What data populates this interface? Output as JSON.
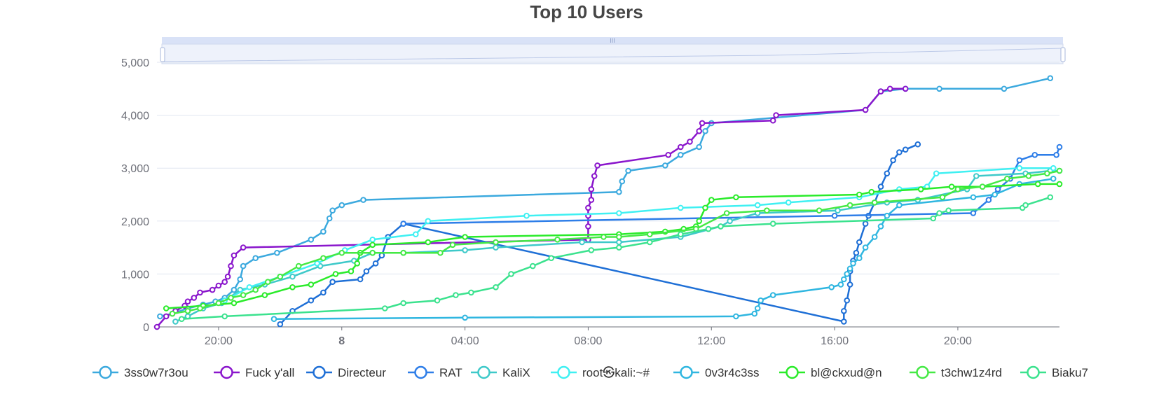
{
  "chart_data": {
    "type": "line",
    "title": "Top 10 Users",
    "xlabel": "",
    "ylabel": "",
    "ylim": [
      0,
      5000
    ],
    "yticks": [
      0,
      1000,
      2000,
      3000,
      4000,
      5000
    ],
    "ytick_labels": [
      "0",
      "1,000",
      "2,000",
      "3,000",
      "4,000",
      "5,000"
    ],
    "xlim": [
      18.0,
      47.3
    ],
    "xticks": [
      {
        "x": 20,
        "label": "20:00",
        "bold": false
      },
      {
        "x": 24,
        "label": "8",
        "bold": true
      },
      {
        "x": 28,
        "label": "04:00",
        "bold": false
      },
      {
        "x": 32,
        "label": "08:00",
        "bold": false
      },
      {
        "x": 36,
        "label": "12:00",
        "bold": false
      },
      {
        "x": 40,
        "label": "16:00",
        "bold": false
      },
      {
        "x": 44,
        "label": "20:00",
        "bold": false
      }
    ],
    "grid": true,
    "legend_position": "bottom",
    "data_zoom_slider": true,
    "series": [
      {
        "name": "3ss0w7r3ou",
        "color": "#3ba9de",
        "points": [
          [
            18.1,
            200
          ],
          [
            18.5,
            250
          ],
          [
            19.0,
            350
          ],
          [
            19.5,
            420
          ],
          [
            19.9,
            480
          ],
          [
            20.2,
            550
          ],
          [
            20.5,
            700
          ],
          [
            20.7,
            900
          ],
          [
            20.8,
            1150
          ],
          [
            21.2,
            1300
          ],
          [
            21.9,
            1400
          ],
          [
            23.0,
            1650
          ],
          [
            23.4,
            1800
          ],
          [
            23.6,
            2050
          ],
          [
            23.7,
            2200
          ],
          [
            24.0,
            2300
          ],
          [
            24.7,
            2400
          ],
          [
            33.0,
            2550
          ],
          [
            33.1,
            2750
          ],
          [
            33.3,
            2950
          ],
          [
            34.5,
            3050
          ],
          [
            35.0,
            3250
          ],
          [
            35.6,
            3400
          ],
          [
            35.8,
            3700
          ],
          [
            36.0,
            3850
          ],
          [
            41.0,
            4100
          ],
          [
            41.5,
            4450
          ],
          [
            42.3,
            4500
          ],
          [
            43.4,
            4500
          ],
          [
            45.5,
            4500
          ],
          [
            47.0,
            4700
          ]
        ]
      },
      {
        "name": "Fuck y'all",
        "color": "#8a16cc",
        "points": [
          [
            18.0,
            0
          ],
          [
            18.3,
            200
          ],
          [
            18.6,
            300
          ],
          [
            18.9,
            400
          ],
          [
            19.0,
            480
          ],
          [
            19.2,
            550
          ],
          [
            19.4,
            650
          ],
          [
            19.8,
            700
          ],
          [
            20.0,
            780
          ],
          [
            20.2,
            850
          ],
          [
            20.3,
            950
          ],
          [
            20.4,
            1150
          ],
          [
            20.5,
            1350
          ],
          [
            20.8,
            1500
          ],
          [
            32.0,
            1650
          ],
          [
            32.0,
            1900
          ],
          [
            32.0,
            2100
          ],
          [
            32.0,
            2250
          ],
          [
            32.1,
            2400
          ],
          [
            32.1,
            2600
          ],
          [
            32.2,
            2850
          ],
          [
            32.3,
            3050
          ],
          [
            34.6,
            3250
          ],
          [
            35.0,
            3400
          ],
          [
            35.3,
            3500
          ],
          [
            35.6,
            3700
          ],
          [
            35.7,
            3850
          ],
          [
            38.0,
            3900
          ],
          [
            38.1,
            4000
          ],
          [
            41.0,
            4100
          ],
          [
            41.5,
            4450
          ],
          [
            41.8,
            4500
          ],
          [
            42.3,
            4500
          ]
        ]
      },
      {
        "name": "Directeur",
        "color": "#1e6fd6",
        "points": [
          [
            22.0,
            50
          ],
          [
            22.4,
            300
          ],
          [
            23.0,
            500
          ],
          [
            23.4,
            650
          ],
          [
            23.7,
            850
          ],
          [
            24.6,
            900
          ],
          [
            24.8,
            1050
          ],
          [
            25.1,
            1200
          ],
          [
            25.3,
            1350
          ],
          [
            25.5,
            1700
          ],
          [
            26.0,
            1950
          ],
          [
            40.3,
            100
          ],
          [
            40.3,
            300
          ],
          [
            40.4,
            500
          ],
          [
            40.5,
            800
          ],
          [
            40.5,
            1050
          ],
          [
            40.6,
            1250
          ],
          [
            40.7,
            1400
          ],
          [
            40.8,
            1600
          ],
          [
            41.0,
            1950
          ],
          [
            41.1,
            2100
          ],
          [
            41.3,
            2350
          ],
          [
            41.5,
            2650
          ],
          [
            41.7,
            2900
          ],
          [
            41.9,
            3150
          ],
          [
            42.1,
            3300
          ],
          [
            42.3,
            3350
          ],
          [
            42.7,
            3450
          ]
        ]
      },
      {
        "name": "RAT",
        "color": "#2e7ee8",
        "points": [
          [
            26.0,
            1950
          ],
          [
            40.0,
            2100
          ],
          [
            44.5,
            2150
          ],
          [
            45.0,
            2400
          ],
          [
            45.3,
            2600
          ],
          [
            45.7,
            2800
          ],
          [
            46.0,
            3150
          ],
          [
            46.5,
            3250
          ],
          [
            47.2,
            3250
          ],
          [
            47.3,
            3400
          ]
        ]
      },
      {
        "name": "KaliX",
        "color": "#3ec9c9",
        "points": [
          [
            18.6,
            100
          ],
          [
            19.0,
            200
          ],
          [
            19.5,
            350
          ],
          [
            20.1,
            450
          ],
          [
            20.7,
            700
          ],
          [
            21.5,
            800
          ],
          [
            22.4,
            950
          ],
          [
            23.3,
            1150
          ],
          [
            24.4,
            1250
          ],
          [
            25.0,
            1400
          ],
          [
            26.0,
            1400
          ],
          [
            28.0,
            1450
          ],
          [
            29.0,
            1500
          ],
          [
            31.8,
            1600
          ],
          [
            33.0,
            1600
          ],
          [
            35.0,
            1700
          ],
          [
            36.3,
            1900
          ],
          [
            36.6,
            2000
          ],
          [
            37.5,
            2150
          ],
          [
            40.1,
            2200
          ],
          [
            41.7,
            2350
          ],
          [
            42.7,
            2400
          ],
          [
            44.3,
            2600
          ],
          [
            44.6,
            2850
          ],
          [
            46.2,
            2900
          ],
          [
            47.0,
            2950
          ],
          [
            47.3,
            2950
          ]
        ]
      },
      {
        "name": "root㉿kali:~#",
        "color": "#3ff0f2",
        "points": [
          [
            20.2,
            500
          ],
          [
            21.0,
            750
          ],
          [
            22.0,
            950
          ],
          [
            23.2,
            1200
          ],
          [
            24.1,
            1450
          ],
          [
            25.0,
            1650
          ],
          [
            26.4,
            1750
          ],
          [
            26.8,
            2000
          ],
          [
            30.0,
            2100
          ],
          [
            33.0,
            2150
          ],
          [
            35.0,
            2250
          ],
          [
            37.5,
            2300
          ],
          [
            38.5,
            2350
          ],
          [
            40.8,
            2450
          ],
          [
            42.1,
            2600
          ],
          [
            43.0,
            2650
          ],
          [
            43.3,
            2900
          ],
          [
            46.0,
            3000
          ],
          [
            47.1,
            3000
          ]
        ]
      },
      {
        "name": "0v3r4c3ss",
        "color": "#2fb6e0",
        "points": [
          [
            21.8,
            150
          ],
          [
            28.0,
            175
          ],
          [
            36.8,
            200
          ],
          [
            37.4,
            250
          ],
          [
            37.5,
            350
          ],
          [
            37.6,
            500
          ],
          [
            38.0,
            600
          ],
          [
            39.9,
            750
          ],
          [
            40.2,
            800
          ],
          [
            40.3,
            900
          ],
          [
            40.4,
            1000
          ],
          [
            40.5,
            1100
          ],
          [
            40.6,
            1200
          ],
          [
            40.8,
            1300
          ],
          [
            41.0,
            1500
          ],
          [
            41.3,
            1700
          ],
          [
            41.5,
            1900
          ],
          [
            41.7,
            2100
          ],
          [
            42.1,
            2300
          ],
          [
            44.5,
            2450
          ],
          [
            45.2,
            2500
          ],
          [
            46.0,
            2700
          ],
          [
            47.1,
            2800
          ]
        ]
      },
      {
        "name": "bl@ckxud@n",
        "color": "#2aeb2a",
        "points": [
          [
            18.3,
            350
          ],
          [
            19.5,
            400
          ],
          [
            20.5,
            450
          ],
          [
            21.5,
            600
          ],
          [
            22.4,
            750
          ],
          [
            23.0,
            800
          ],
          [
            23.8,
            1000
          ],
          [
            24.3,
            1050
          ],
          [
            24.5,
            1200
          ],
          [
            24.6,
            1400
          ],
          [
            25.0,
            1550
          ],
          [
            26.8,
            1600
          ],
          [
            28.0,
            1700
          ],
          [
            33.0,
            1750
          ],
          [
            34.5,
            1800
          ],
          [
            35.1,
            1850
          ],
          [
            35.5,
            1900
          ],
          [
            35.6,
            2000
          ],
          [
            35.8,
            2250
          ],
          [
            36.0,
            2400
          ],
          [
            36.8,
            2450
          ],
          [
            40.8,
            2500
          ],
          [
            41.2,
            2550
          ],
          [
            42.8,
            2600
          ],
          [
            43.8,
            2650
          ],
          [
            44.8,
            2650
          ],
          [
            46.6,
            2700
          ],
          [
            47.3,
            2700
          ]
        ]
      },
      {
        "name": "t3chw1z4rd",
        "color": "#45e945",
        "points": [
          [
            18.5,
            250
          ],
          [
            19.0,
            300
          ],
          [
            19.4,
            350
          ],
          [
            20.0,
            450
          ],
          [
            20.4,
            550
          ],
          [
            20.8,
            600
          ],
          [
            21.2,
            700
          ],
          [
            21.6,
            850
          ],
          [
            22.0,
            950
          ],
          [
            22.6,
            1150
          ],
          [
            23.4,
            1300
          ],
          [
            24.0,
            1400
          ],
          [
            25.0,
            1400
          ],
          [
            26.0,
            1400
          ],
          [
            27.2,
            1400
          ],
          [
            27.6,
            1550
          ],
          [
            29.0,
            1600
          ],
          [
            31.0,
            1650
          ],
          [
            32.5,
            1700
          ],
          [
            33.0,
            1700
          ],
          [
            34.0,
            1750
          ],
          [
            35.5,
            1850
          ],
          [
            36.5,
            2150
          ],
          [
            37.8,
            2200
          ],
          [
            39.5,
            2200
          ],
          [
            40.5,
            2300
          ],
          [
            41.3,
            2350
          ],
          [
            43.5,
            2450
          ],
          [
            44.0,
            2600
          ],
          [
            44.8,
            2650
          ],
          [
            45.6,
            2800
          ],
          [
            46.3,
            2850
          ],
          [
            46.9,
            2900
          ],
          [
            47.3,
            2950
          ]
        ]
      },
      {
        "name": "Biaku7",
        "color": "#3be28e",
        "points": [
          [
            18.8,
            150
          ],
          [
            20.2,
            200
          ],
          [
            25.4,
            350
          ],
          [
            26.0,
            450
          ],
          [
            27.1,
            500
          ],
          [
            27.7,
            600
          ],
          [
            28.2,
            650
          ],
          [
            29.0,
            750
          ],
          [
            29.5,
            1000
          ],
          [
            30.2,
            1150
          ],
          [
            30.8,
            1300
          ],
          [
            32.1,
            1450
          ],
          [
            33.0,
            1500
          ],
          [
            34.0,
            1600
          ],
          [
            35.0,
            1750
          ],
          [
            35.9,
            1850
          ],
          [
            36.3,
            1900
          ],
          [
            38.0,
            1950
          ],
          [
            43.2,
            2050
          ],
          [
            43.4,
            2150
          ],
          [
            43.7,
            2200
          ],
          [
            46.1,
            2250
          ],
          [
            46.2,
            2300
          ],
          [
            47.0,
            2450
          ]
        ]
      }
    ]
  }
}
